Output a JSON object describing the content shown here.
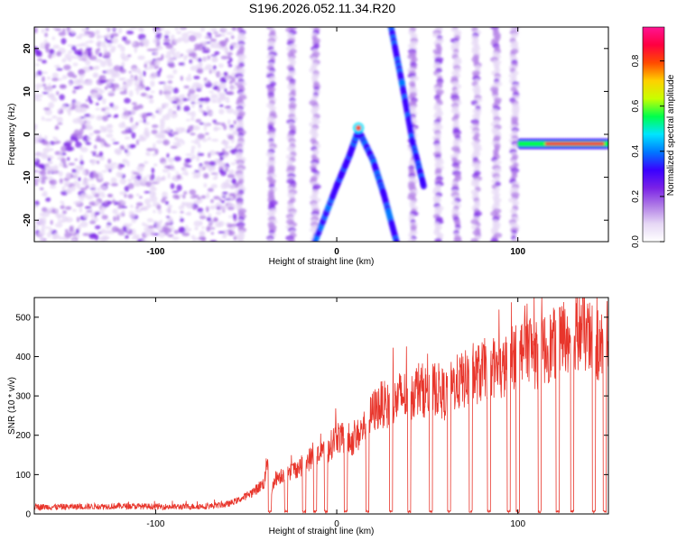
{
  "title": "S196.2026.052.11.34.R20",
  "chart_data": [
    {
      "type": "heatmap",
      "xlabel": "Height of straight line (km)",
      "ylabel": "Frequency (Hz)",
      "xlim": [
        -167,
        150
      ],
      "ylim": [
        -25,
        25
      ],
      "x_ticks": [
        -100,
        0,
        100
      ],
      "y_ticks": [
        -20,
        -10,
        0,
        10,
        20
      ],
      "colorbar": {
        "label": "Normalized spectral amplitude",
        "range": [
          0,
          0.95
        ],
        "ticks": [
          0.0,
          0.2,
          0.4,
          0.6,
          0.8
        ],
        "tick_labels": [
          "0.0",
          "0.2",
          "0.4",
          "0.6",
          "0.8"
        ],
        "colormap": [
          "#ffffff",
          "#e6d7f5",
          "#b07ce6",
          "#7a22e6",
          "#3a00ff",
          "#0077ff",
          "#00e5ff",
          "#00ff4c",
          "#c8ff00",
          "#ffd000",
          "#ff4a00",
          "#ff0040",
          "#ff1493"
        ]
      },
      "features": [
        {
          "kind": "noise-field",
          "x": [
            -167,
            -55
          ]
        },
        {
          "kind": "vertical-band",
          "x": -53,
          "y": [
            -25,
            25
          ]
        },
        {
          "kind": "vertical-band",
          "x": -36,
          "y": [
            -25,
            25
          ]
        },
        {
          "kind": "vertical-band",
          "x": -25,
          "y": [
            -25,
            25
          ]
        },
        {
          "kind": "vertical-band",
          "x": -12,
          "y": [
            -25,
            25
          ]
        },
        {
          "kind": "vertical-band",
          "x": 42,
          "y": [
            -25,
            25
          ]
        },
        {
          "kind": "vertical-band",
          "x": 56,
          "y": [
            -25,
            25
          ]
        },
        {
          "kind": "vertical-band",
          "x": 66,
          "y": [
            -25,
            25
          ]
        },
        {
          "kind": "vertical-band",
          "x": 77,
          "y": [
            -25,
            25
          ]
        },
        {
          "kind": "vertical-band",
          "x": 88,
          "y": [
            -25,
            25
          ]
        },
        {
          "kind": "vertical-band",
          "x": 98,
          "y": [
            -25,
            25
          ]
        },
        {
          "kind": "diagonal-track",
          "points": [
            [
              -12,
              -25
            ],
            [
              0,
              -12
            ],
            [
              7,
              -5
            ],
            [
              12,
              1
            ]
          ]
        },
        {
          "kind": "diagonal-track",
          "points": [
            [
              12,
              1
            ],
            [
              20,
              -6
            ],
            [
              26,
              -14
            ],
            [
              33,
              -25
            ]
          ]
        },
        {
          "kind": "diagonal-track",
          "points": [
            [
              30,
              25
            ],
            [
              36,
              12
            ],
            [
              42,
              -2
            ],
            [
              48,
              -12
            ]
          ]
        },
        {
          "kind": "peak",
          "x": 12,
          "y": 1.5,
          "value": 0.8
        },
        {
          "kind": "tone",
          "x": [
            101,
            150
          ],
          "y": -2.2,
          "value": 0.9
        }
      ]
    },
    {
      "type": "line",
      "xlabel": "Height of straight line (km)",
      "ylabel": "SNR (10 * v/v)",
      "xlim": [
        -167,
        150
      ],
      "ylim": [
        0,
        550
      ],
      "x_ticks": [
        -100,
        0,
        100
      ],
      "y_ticks": [
        0,
        100,
        200,
        300,
        400,
        500
      ],
      "color": "#e8352b",
      "series": [
        {
          "x": [
            -167,
            -150,
            -120,
            -90,
            -70,
            -60,
            -52,
            -45,
            -40,
            -38,
            -36,
            -34,
            -30,
            -25,
            -20,
            -15,
            -10,
            -5,
            0,
            5,
            10,
            15,
            18,
            20,
            25,
            30,
            35,
            40,
            45,
            50,
            55,
            60,
            65,
            70,
            75,
            80,
            85,
            90,
            95,
            100,
            105,
            110,
            115,
            120,
            125,
            130,
            135,
            140,
            145,
            150
          ],
          "y": [
            18,
            18,
            20,
            18,
            20,
            25,
            40,
            60,
            80,
            150,
            60,
            90,
            100,
            110,
            120,
            140,
            150,
            160,
            200,
            180,
            190,
            220,
            240,
            260,
            280,
            270,
            300,
            300,
            320,
            310,
            320,
            300,
            330,
            340,
            350,
            360,
            380,
            360,
            380,
            420,
            440,
            400,
            420,
            430,
            450,
            460,
            470,
            440,
            420,
            450
          ]
        }
      ],
      "dropouts": [
        -37,
        -28,
        -18,
        -12,
        -6,
        5,
        17,
        30,
        40,
        52,
        62,
        74,
        84,
        95,
        100,
        112,
        122,
        130,
        142,
        148
      ]
    }
  ]
}
